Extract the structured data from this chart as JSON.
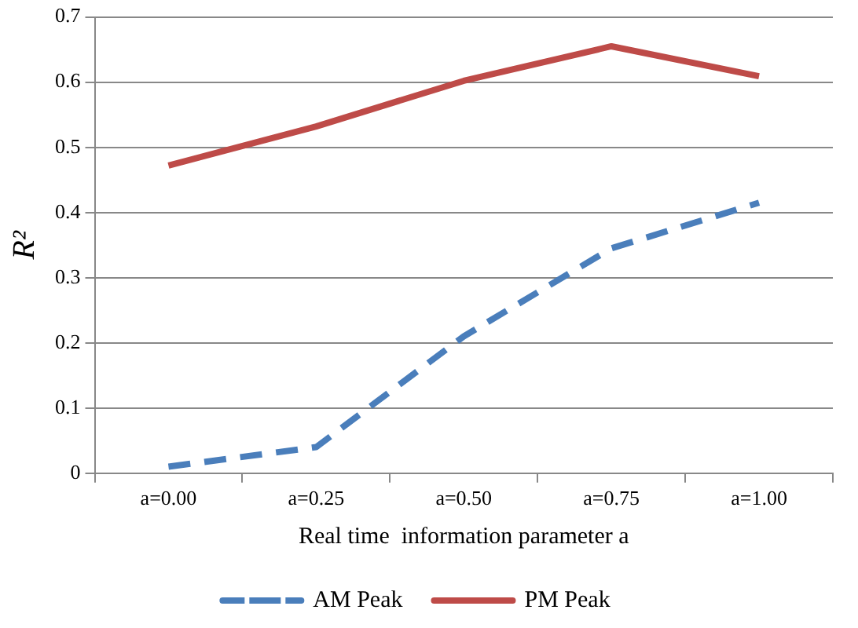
{
  "chart_data": {
    "type": "line",
    "xlabel": "Real time  information parameter a",
    "ylabel": "R²",
    "categories": [
      "a=0.00",
      "a=0.25",
      "a=0.50",
      "a=0.75",
      "a=1.00"
    ],
    "series": [
      {
        "name": "AM Peak",
        "color": "#4a7ebb",
        "line_style": "dashed",
        "values": [
          0.01,
          0.04,
          0.21,
          0.345,
          0.415
        ]
      },
      {
        "name": "PM Peak",
        "color": "#be4b48",
        "line_style": "solid",
        "values": [
          0.472,
          0.532,
          0.602,
          0.655,
          0.609
        ]
      }
    ],
    "ylim": [
      0,
      0.7
    ],
    "yticks": [
      0,
      0.1,
      0.2,
      0.3,
      0.4,
      0.5,
      0.6,
      0.7
    ],
    "grid": "y",
    "legend": "bottom",
    "marker": "none"
  }
}
